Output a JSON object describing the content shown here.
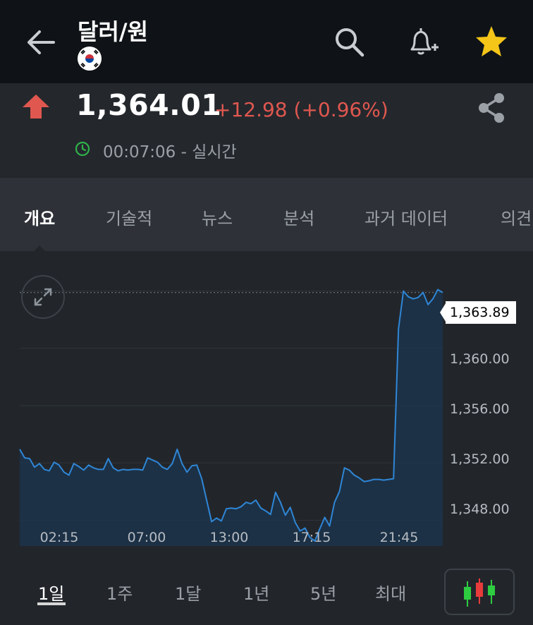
{
  "header": {
    "title": "달러/원",
    "back_icon": "arrow-left-icon",
    "search_icon": "search-icon",
    "alert_icon": "bell-plus-icon",
    "favorite_icon": "star-icon",
    "favorite_color": "#f5c518",
    "flag_icon": "south-korea-flag-icon"
  },
  "quote": {
    "price": "1,364.01",
    "change": "+12.98 (+0.96%)",
    "direction": "up",
    "time": "00:07:06 - 실시간",
    "up_color": "#e0574f",
    "realtime_color": "#2fb34a"
  },
  "tabs": [
    {
      "label": "개요",
      "active": true
    },
    {
      "label": "기술적",
      "active": false
    },
    {
      "label": "뉴스",
      "active": false
    },
    {
      "label": "분석",
      "active": false
    },
    {
      "label": "과거 데이터",
      "active": false
    },
    {
      "label": "의견",
      "active": false
    }
  ],
  "chart_data": {
    "type": "area",
    "x_ticks": [
      "02:15",
      "07:00",
      "13:00",
      "17:15",
      "21:45"
    ],
    "y_ticks": [
      "1,360.00",
      "1,356.00",
      "1,352.00",
      "1,348.00"
    ],
    "ylim": [
      1346.2,
      1365.8
    ],
    "current_label": "1,363.89",
    "current_value": 1363.89,
    "line_color": "#2f86d6",
    "y": [
      1352.95,
      1352.35,
      1352.3,
      1351.7,
      1351.95,
      1351.55,
      1351.45,
      1352.05,
      1351.85,
      1351.35,
      1351.15,
      1351.95,
      1351.75,
      1351.5,
      1351.85,
      1351.65,
      1351.55,
      1351.55,
      1352.3,
      1351.65,
      1351.45,
      1351.55,
      1351.5,
      1351.55,
      1351.55,
      1351.5,
      1352.35,
      1352.2,
      1352.05,
      1351.7,
      1351.55,
      1351.95,
      1352.95,
      1351.95,
      1351.35,
      1351.8,
      1351.85,
      1350.9,
      1349.4,
      1347.9,
      1348.15,
      1347.95,
      1348.8,
      1348.85,
      1348.8,
      1348.95,
      1349.25,
      1349.15,
      1349.4,
      1348.85,
      1348.65,
      1348.4,
      1349.95,
      1349.25,
      1348.35,
      1348.9,
      1347.85,
      1347.25,
      1347.45,
      1346.8,
      1346.55,
      1347.4,
      1348.2,
      1347.6,
      1349.25,
      1350.0,
      1351.65,
      1351.5,
      1351.15,
      1350.95,
      1350.7,
      1350.75,
      1350.85,
      1350.85,
      1350.8,
      1350.85,
      1350.9,
      1361.35,
      1364.0,
      1363.6,
      1363.45,
      1363.55,
      1363.9,
      1363.05,
      1363.45,
      1364.1,
      1363.89
    ]
  },
  "ranges": [
    {
      "label": "1일",
      "active": true
    },
    {
      "label": "1주",
      "active": false
    },
    {
      "label": "1달",
      "active": false
    },
    {
      "label": "1년",
      "active": false
    },
    {
      "label": "5년",
      "active": false
    },
    {
      "label": "최대",
      "active": false
    }
  ],
  "chart_controls": {
    "expand_icon": "expand-arrows-icon",
    "candlestick_icon": "candlestick-chart-icon",
    "share_icon": "share-icon",
    "clock_icon": "clock-icon"
  }
}
